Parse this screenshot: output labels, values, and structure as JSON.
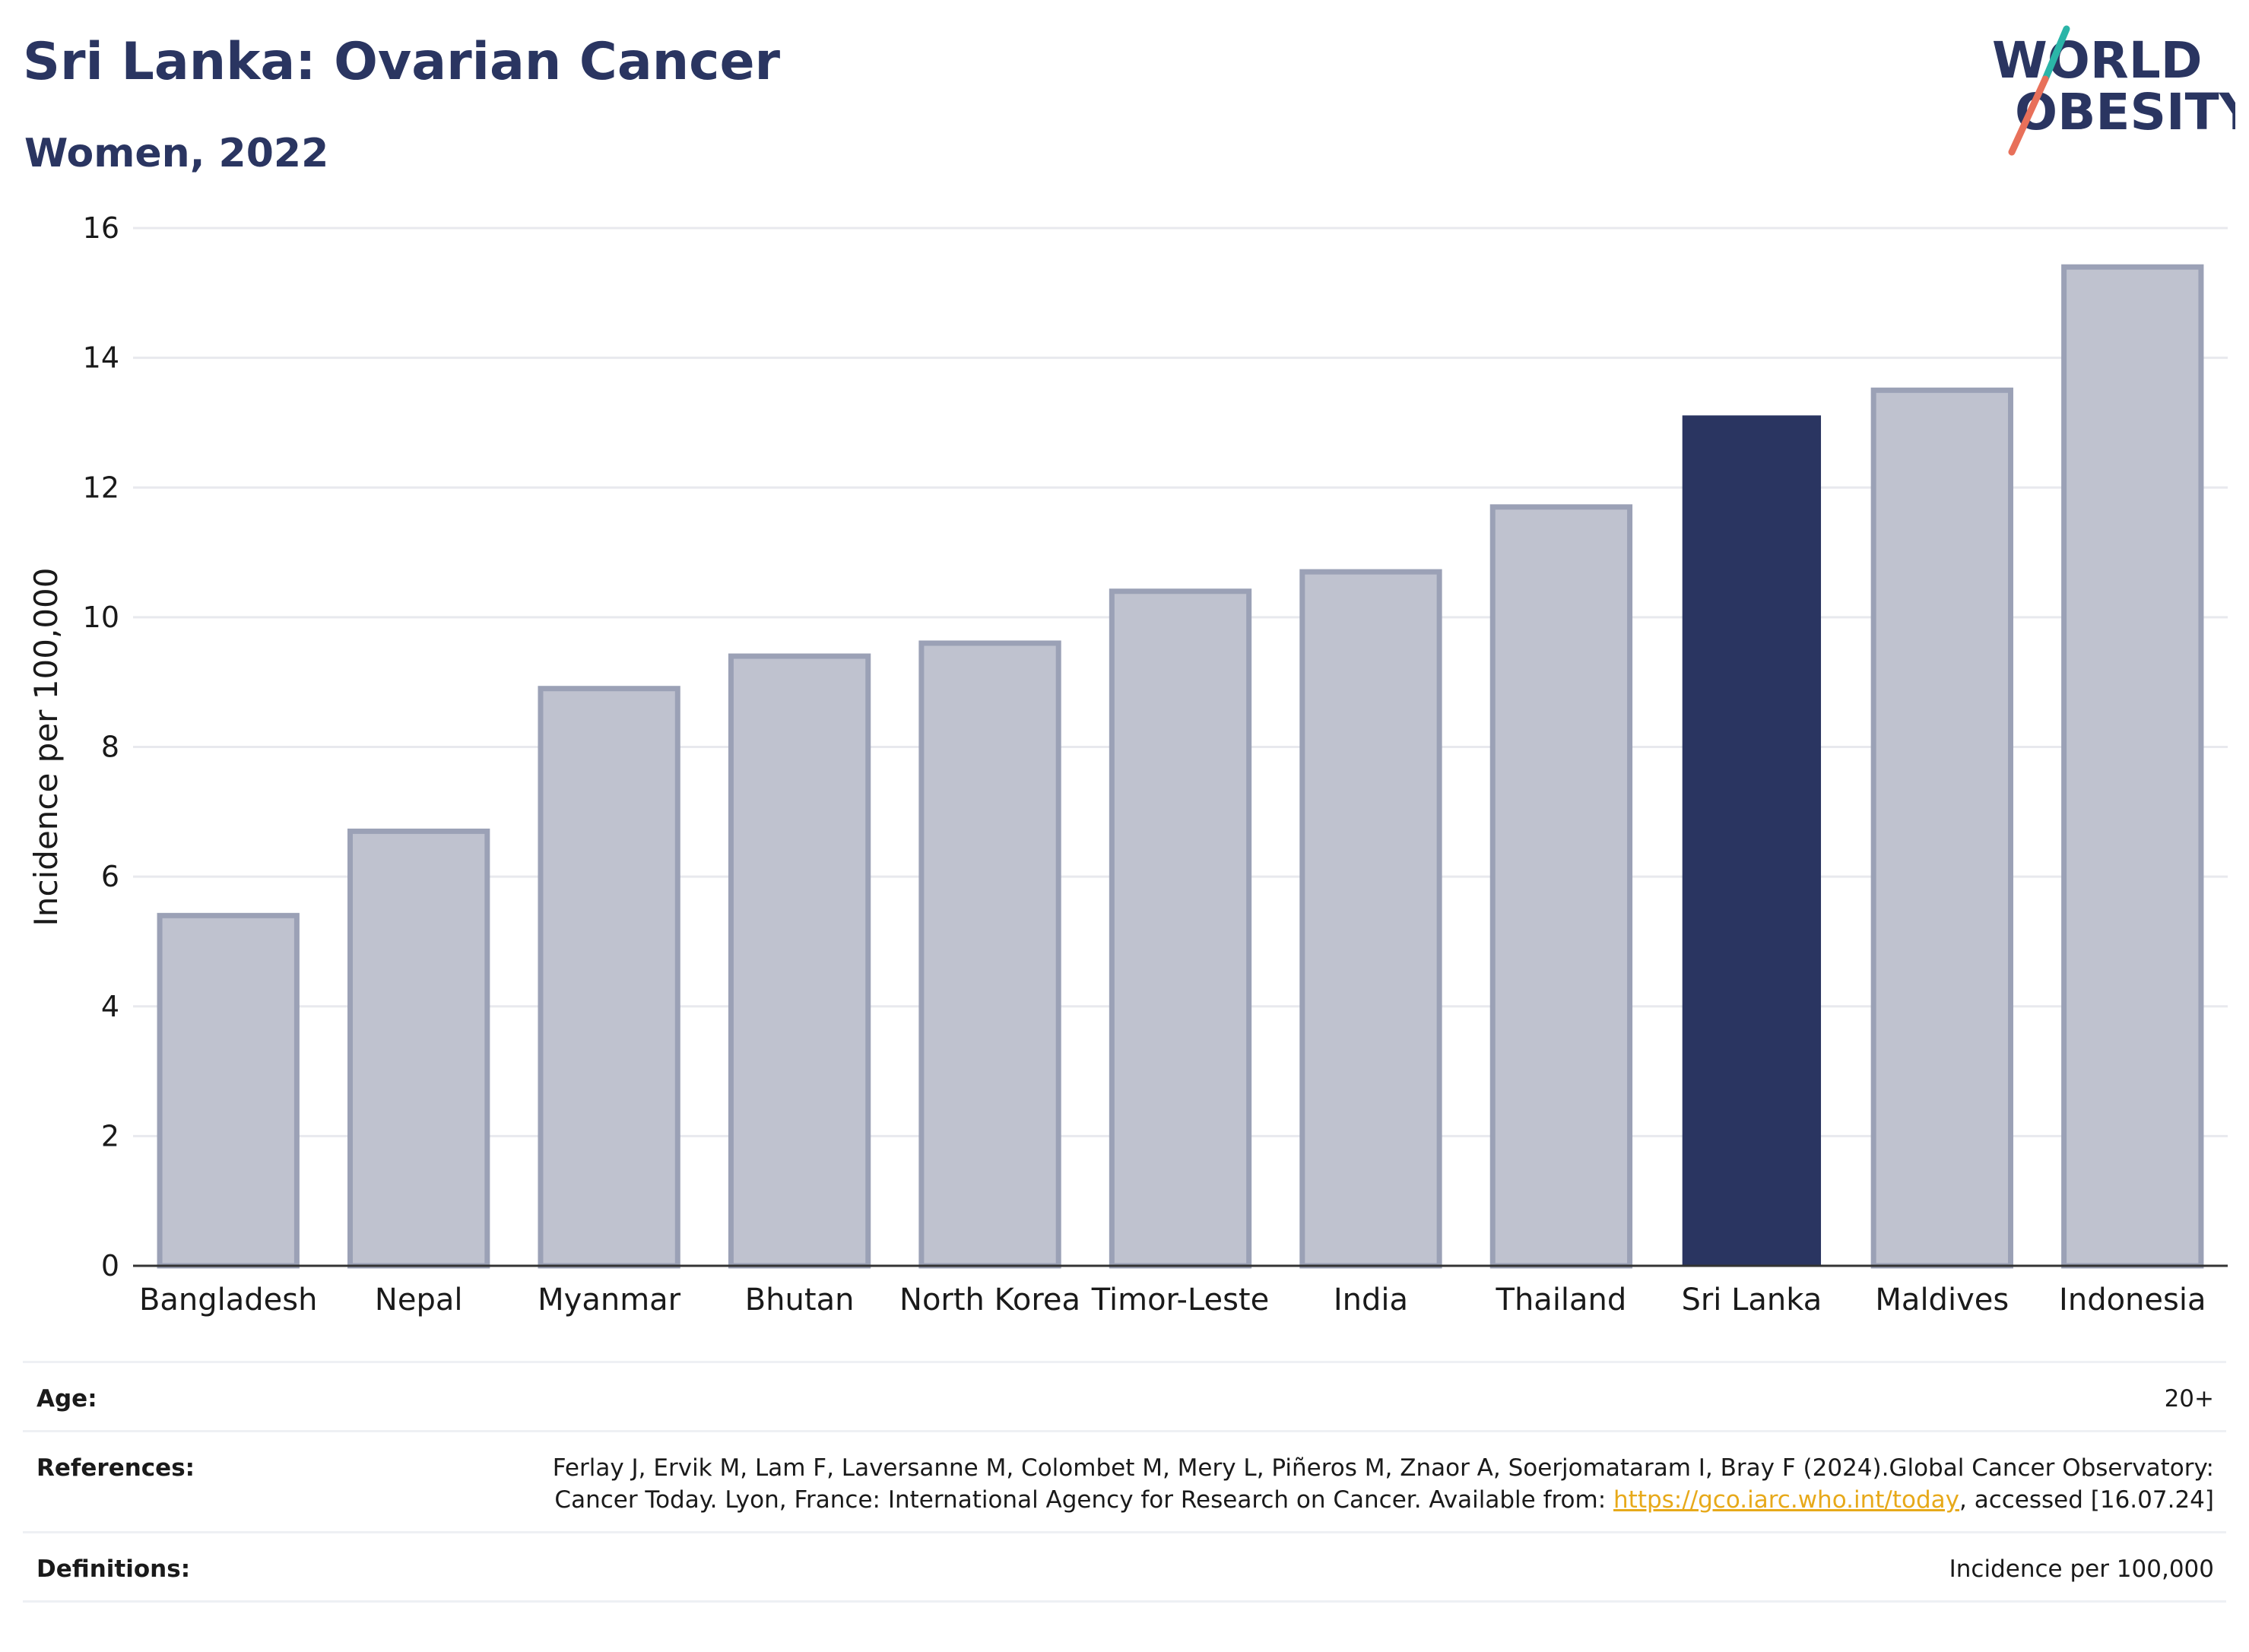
{
  "header": {
    "title": "Sri Lanka: Ovarian Cancer",
    "subtitle": "Women, 2022"
  },
  "logo": {
    "line1": "WORLD",
    "line2": "OBESITY",
    "text_color": "#2a3561",
    "slash_colors": [
      "#2bb5a8",
      "#e8705a"
    ]
  },
  "chart_data": {
    "type": "bar",
    "title": "Sri Lanka: Ovarian Cancer",
    "subtitle": "Women, 2022",
    "categories": [
      "Bangladesh",
      "Nepal",
      "Myanmar",
      "Bhutan",
      "North Korea",
      "Timor-Leste",
      "India",
      "Thailand",
      "Sri Lanka",
      "Maldives",
      "Indonesia"
    ],
    "values": [
      5.4,
      6.7,
      8.9,
      9.4,
      9.6,
      10.4,
      10.7,
      11.7,
      13.1,
      13.5,
      15.4
    ],
    "highlight": "Sri Lanka",
    "xlabel": "",
    "ylabel": "Incidence per 100,000",
    "ylim": [
      0,
      16
    ],
    "yticks": [
      0,
      2,
      4,
      6,
      8,
      10,
      12,
      14,
      16
    ],
    "grid": true,
    "colors": {
      "bar": "#bfc2cf",
      "bar_outline": "#9ba1b6",
      "highlight": "#2a3561",
      "grid": "#e8e9ee",
      "axis": "#333333"
    }
  },
  "meta": {
    "age_label": "Age:",
    "age_value": "20+",
    "references_label": "References:",
    "references_text": "Ferlay J, Ervik M, Lam F, Laversanne M, Colombet M, Mery L, Piñeros M, Znaor A, Soerjomataram I, Bray F (2024).Global Cancer Observatory: Cancer Today. Lyon, France: International Agency for Research on Cancer. Available from: ",
    "references_link": "https://gco.iarc.who.int/today",
    "references_suffix": ", accessed [16.07.24]",
    "definitions_label": "Definitions:",
    "definitions_value": "Incidence per 100,000"
  }
}
